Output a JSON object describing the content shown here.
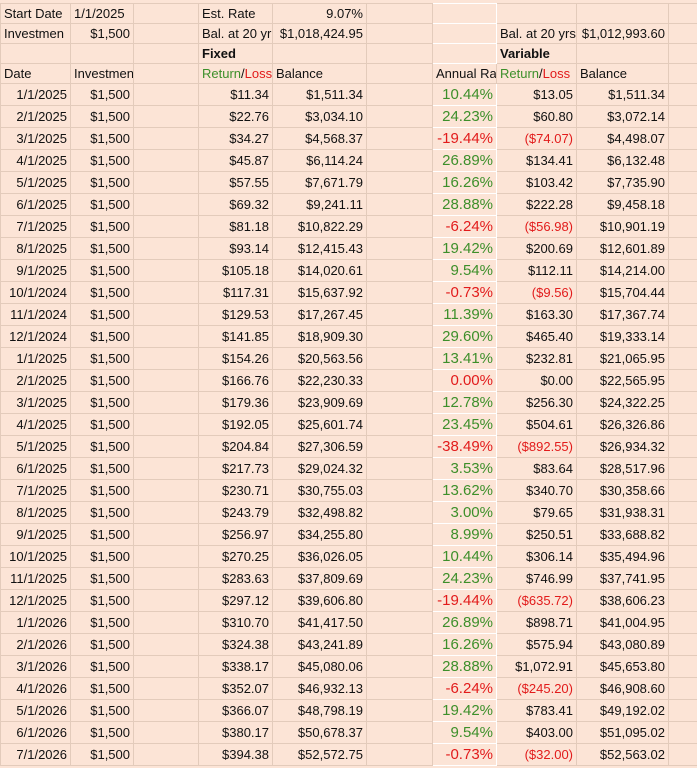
{
  "top": {
    "start_date_label": "Start Date",
    "start_date": "1/1/2025",
    "est_rate_label": "Est. Rate",
    "est_rate": "9.07%",
    "investment_label": "Investmen",
    "investment": "$1,500",
    "fixed_bal_label": "Bal. at 20 yr",
    "fixed_bal": "$1,018,424.95",
    "variable_bal_label": "Bal. at 20 yrs",
    "variable_bal": "$1,012,993.60",
    "fixed_header": "Fixed",
    "variable_header": "Variable"
  },
  "headers": {
    "date": "Date",
    "investment": "Investment",
    "return_parts": [
      "Return",
      "/",
      "Loss"
    ],
    "balance": "Balance",
    "annual_rate": "Annual Ra"
  },
  "rows": [
    [
      "1/1/2025",
      "$1,500",
      "$11.34",
      "$1,511.34",
      "10.44%",
      "$13.05",
      "$1,511.34"
    ],
    [
      "2/1/2025",
      "$1,500",
      "$22.76",
      "$3,034.10",
      "24.23%",
      "$60.80",
      "$3,072.14"
    ],
    [
      "3/1/2025",
      "$1,500",
      "$34.27",
      "$4,568.37",
      "-19.44%",
      "($74.07)",
      "$4,498.07"
    ],
    [
      "4/1/2025",
      "$1,500",
      "$45.87",
      "$6,114.24",
      "26.89%",
      "$134.41",
      "$6,132.48"
    ],
    [
      "5/1/2025",
      "$1,500",
      "$57.55",
      "$7,671.79",
      "16.26%",
      "$103.42",
      "$7,735.90"
    ],
    [
      "6/1/2025",
      "$1,500",
      "$69.32",
      "$9,241.11",
      "28.88%",
      "$222.28",
      "$9,458.18"
    ],
    [
      "7/1/2025",
      "$1,500",
      "$81.18",
      "$10,822.29",
      "-6.24%",
      "($56.98)",
      "$10,901.19"
    ],
    [
      "8/1/2025",
      "$1,500",
      "$93.14",
      "$12,415.43",
      "19.42%",
      "$200.69",
      "$12,601.89"
    ],
    [
      "9/1/2025",
      "$1,500",
      "$105.18",
      "$14,020.61",
      "9.54%",
      "$112.11",
      "$14,214.00"
    ],
    [
      "10/1/2024",
      "$1,500",
      "$117.31",
      "$15,637.92",
      "-0.73%",
      "($9.56)",
      "$15,704.44"
    ],
    [
      "11/1/2024",
      "$1,500",
      "$129.53",
      "$17,267.45",
      "11.39%",
      "$163.30",
      "$17,367.74"
    ],
    [
      "12/1/2024",
      "$1,500",
      "$141.85",
      "$18,909.30",
      "29.60%",
      "$465.40",
      "$19,333.14"
    ],
    [
      "1/1/2025",
      "$1,500",
      "$154.26",
      "$20,563.56",
      "13.41%",
      "$232.81",
      "$21,065.95"
    ],
    [
      "2/1/2025",
      "$1,500",
      "$166.76",
      "$22,230.33",
      "0.00%",
      "$0.00",
      "$22,565.95"
    ],
    [
      "3/1/2025",
      "$1,500",
      "$179.36",
      "$23,909.69",
      "12.78%",
      "$256.30",
      "$24,322.25"
    ],
    [
      "4/1/2025",
      "$1,500",
      "$192.05",
      "$25,601.74",
      "23.45%",
      "$504.61",
      "$26,326.86"
    ],
    [
      "5/1/2025",
      "$1,500",
      "$204.84",
      "$27,306.59",
      "-38.49%",
      "($892.55)",
      "$26,934.32"
    ],
    [
      "6/1/2025",
      "$1,500",
      "$217.73",
      "$29,024.32",
      "3.53%",
      "$83.64",
      "$28,517.96"
    ],
    [
      "7/1/2025",
      "$1,500",
      "$230.71",
      "$30,755.03",
      "13.62%",
      "$340.70",
      "$30,358.66"
    ],
    [
      "8/1/2025",
      "$1,500",
      "$243.79",
      "$32,498.82",
      "3.00%",
      "$79.65",
      "$31,938.31"
    ],
    [
      "9/1/2025",
      "$1,500",
      "$256.97",
      "$34,255.80",
      "8.99%",
      "$250.51",
      "$33,688.82"
    ],
    [
      "10/1/2025",
      "$1,500",
      "$270.25",
      "$36,026.05",
      "10.44%",
      "$306.14",
      "$35,494.96"
    ],
    [
      "11/1/2025",
      "$1,500",
      "$283.63",
      "$37,809.69",
      "24.23%",
      "$746.99",
      "$37,741.95"
    ],
    [
      "12/1/2025",
      "$1,500",
      "$297.12",
      "$39,606.80",
      "-19.44%",
      "($635.72)",
      "$38,606.23"
    ],
    [
      "1/1/2026",
      "$1,500",
      "$310.70",
      "$41,417.50",
      "26.89%",
      "$898.71",
      "$41,004.95"
    ],
    [
      "2/1/2026",
      "$1,500",
      "$324.38",
      "$43,241.89",
      "16.26%",
      "$575.94",
      "$43,080.89"
    ],
    [
      "3/1/2026",
      "$1,500",
      "$338.17",
      "$45,080.06",
      "28.88%",
      "$1,072.91",
      "$45,653.80"
    ],
    [
      "4/1/2026",
      "$1,500",
      "$352.07",
      "$46,932.13",
      "-6.24%",
      "($245.20)",
      "$46,908.60"
    ],
    [
      "5/1/2026",
      "$1,500",
      "$366.07",
      "$48,798.19",
      "19.42%",
      "$783.41",
      "$49,192.02"
    ],
    [
      "6/1/2026",
      "$1,500",
      "$380.17",
      "$50,678.37",
      "9.54%",
      "$403.00",
      "$51,095.02"
    ],
    [
      "7/1/2026",
      "$1,500",
      "$394.38",
      "$52,572.75",
      "-0.73%",
      "($32.00)",
      "$52,563.02"
    ]
  ]
}
